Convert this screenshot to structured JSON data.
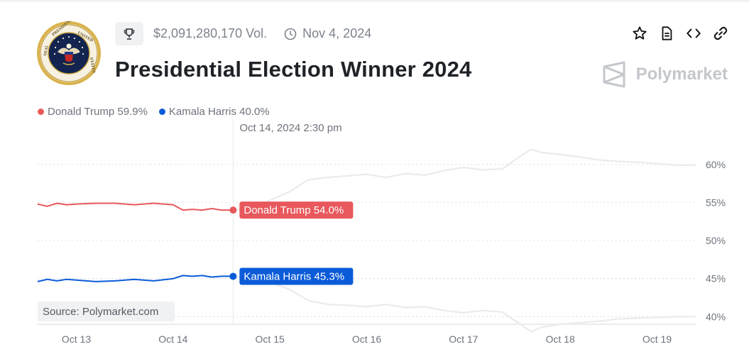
{
  "header": {
    "volume": "$2,091,280,170 Vol.",
    "date": "Nov 4, 2024",
    "title": "Presidential Election Winner 2024",
    "brand": "Polymarket",
    "icons": [
      "trophy-icon",
      "clock-icon",
      "star-icon",
      "document-icon",
      "embed-code-icon",
      "link-icon",
      "polymarket-logo-icon",
      "presidential-seal"
    ]
  },
  "legend": [
    {
      "label": "Donald Trump 59.9%",
      "color": "#e64800"
    },
    {
      "label": "Kamala Harris 40.0%",
      "color": "#0a5bd8"
    }
  ],
  "chart_data": {
    "type": "line",
    "hover_label": "Oct 14, 2024 2:30 pm",
    "source": "Source: Polymarket.com",
    "x_ticks": [
      "Oct 13",
      "Oct 14",
      "Oct 15",
      "Oct 16",
      "Oct 17",
      "Oct 18",
      "Oct 19"
    ],
    "y_ticks": [
      "60%",
      "55%",
      "50%",
      "45%",
      "40%"
    ],
    "y_tick_values": [
      60,
      55,
      50,
      45,
      40
    ],
    "ylim": [
      39,
      62.5
    ],
    "xlim": [
      12.6,
      19.4
    ],
    "grid": true,
    "tooltips": [
      {
        "series": "Donald Trump",
        "label": "Donald Trump 54.0%",
        "x": 14.62,
        "y": 54.0
      },
      {
        "series": "Kamala Harris",
        "label": "Kamala Harris 45.3%",
        "x": 14.62,
        "y": 45.3
      }
    ],
    "series": [
      {
        "name": "Donald Trump",
        "color": "#e8585c",
        "future_color": "#ebebeb",
        "x": [
          12.6,
          12.7,
          12.8,
          12.9,
          13.0,
          13.2,
          13.4,
          13.6,
          13.8,
          14.0,
          14.1,
          14.2,
          14.3,
          14.4,
          14.5,
          14.62,
          14.8,
          15.0,
          15.2,
          15.4,
          15.6,
          15.8,
          16.0,
          16.2,
          16.4,
          16.6,
          16.8,
          17.0,
          17.2,
          17.4,
          17.6,
          17.7,
          17.8,
          18.0,
          18.2,
          18.4,
          18.6,
          18.8,
          19.0,
          19.2,
          19.4
        ],
        "y": [
          54.8,
          54.5,
          54.9,
          54.7,
          54.8,
          54.9,
          54.9,
          54.7,
          54.9,
          54.7,
          54.0,
          54.1,
          54.0,
          54.2,
          54.0,
          54.0,
          54.3,
          55.3,
          56.4,
          58.0,
          58.3,
          58.5,
          58.7,
          58.3,
          58.8,
          58.6,
          59.2,
          59.6,
          59.3,
          59.4,
          61.2,
          62.0,
          61.6,
          61.3,
          61.0,
          60.6,
          60.4,
          60.3,
          60.1,
          59.9,
          59.9
        ]
      },
      {
        "name": "Kamala Harris",
        "color": "#0a5bd8",
        "future_color": "#ebebeb",
        "x": [
          12.6,
          12.7,
          12.8,
          12.9,
          13.0,
          13.2,
          13.4,
          13.6,
          13.8,
          14.0,
          14.1,
          14.2,
          14.3,
          14.4,
          14.5,
          14.62,
          14.8,
          15.0,
          15.2,
          15.4,
          15.6,
          15.8,
          16.0,
          16.2,
          16.4,
          16.6,
          16.8,
          17.0,
          17.2,
          17.4,
          17.6,
          17.7,
          17.8,
          18.0,
          18.2,
          18.4,
          18.6,
          18.8,
          19.0,
          19.2,
          19.4
        ],
        "y": [
          44.6,
          44.9,
          44.7,
          44.9,
          44.8,
          44.6,
          44.7,
          44.9,
          44.7,
          45.0,
          45.4,
          45.3,
          45.4,
          45.2,
          45.3,
          45.3,
          45.0,
          44.5,
          43.6,
          42.1,
          41.6,
          41.5,
          41.3,
          41.6,
          41.2,
          41.3,
          40.8,
          40.5,
          40.8,
          40.6,
          38.9,
          38.0,
          38.6,
          39.0,
          39.2,
          39.4,
          39.7,
          39.8,
          39.9,
          40.0,
          40.0
        ]
      }
    ]
  }
}
